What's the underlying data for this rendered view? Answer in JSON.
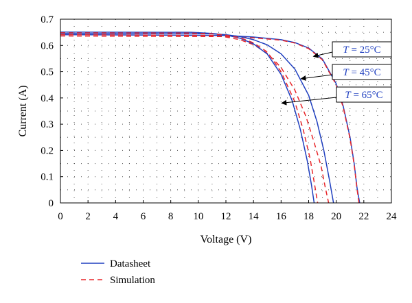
{
  "chart_data": {
    "type": "line",
    "title": "",
    "xlabel": "Voltage (V)",
    "ylabel": "Current (A)",
    "xlim": [
      0,
      24
    ],
    "ylim": [
      0,
      0.7
    ],
    "xticks": [
      0,
      2,
      4,
      6,
      8,
      10,
      12,
      14,
      16,
      18,
      20,
      22,
      24
    ],
    "yticks": [
      0,
      0.1,
      0.2,
      0.3,
      0.4,
      0.5,
      0.6,
      0.7
    ],
    "grid": "dotted",
    "legend_position": "bottom-left",
    "legend": [
      {
        "label": "Datasheet",
        "color": "#1f3fbf",
        "dash": "solid"
      },
      {
        "label": "Simulation",
        "color": "#e8262a",
        "dash": "dashed"
      }
    ],
    "series": [
      {
        "group": "Datasheet",
        "temperature": "25",
        "color": "#1f3fbf",
        "dash": "solid",
        "x": [
          0,
          12,
          14,
          16,
          17,
          18,
          19,
          20,
          20.5,
          21,
          21.3,
          21.5,
          21.7
        ],
        "y": [
          0.641,
          0.638,
          0.632,
          0.622,
          0.611,
          0.59,
          0.548,
          0.454,
          0.37,
          0.25,
          0.15,
          0.06,
          0.0
        ]
      },
      {
        "group": "Simulation",
        "temperature": "25",
        "color": "#e8262a",
        "dash": "dashed",
        "x": [
          0,
          12,
          14,
          16,
          17,
          18,
          19,
          20,
          20.5,
          21,
          21.3,
          21.5,
          21.65
        ],
        "y": [
          0.636,
          0.634,
          0.629,
          0.62,
          0.609,
          0.588,
          0.545,
          0.45,
          0.365,
          0.245,
          0.145,
          0.055,
          0.0
        ]
      },
      {
        "group": "Datasheet",
        "temperature": "45",
        "color": "#1f3fbf",
        "dash": "solid",
        "x": [
          0,
          11,
          12,
          13,
          14,
          15,
          16,
          17,
          18,
          18.6,
          19.1,
          19.5,
          19.8
        ],
        "y": [
          0.646,
          0.644,
          0.641,
          0.634,
          0.622,
          0.602,
          0.568,
          0.51,
          0.41,
          0.31,
          0.2,
          0.09,
          0.0
        ]
      },
      {
        "group": "Simulation",
        "temperature": "45",
        "color": "#e8262a",
        "dash": "dashed",
        "x": [
          0,
          11,
          12,
          13,
          14,
          15,
          16,
          17,
          17.8,
          18.4,
          18.9,
          19.2,
          19.45
        ],
        "y": [
          0.641,
          0.638,
          0.632,
          0.622,
          0.603,
          0.57,
          0.516,
          0.43,
          0.33,
          0.23,
          0.14,
          0.06,
          0.0
        ]
      },
      {
        "group": "Datasheet",
        "temperature": "65",
        "color": "#1f3fbf",
        "dash": "solid",
        "x": [
          0,
          9.5,
          11,
          12,
          13,
          14,
          15,
          16,
          16.8,
          17.4,
          17.9,
          18.2,
          18.4
        ],
        "y": [
          0.651,
          0.65,
          0.646,
          0.64,
          0.628,
          0.606,
          0.567,
          0.49,
          0.39,
          0.28,
          0.16,
          0.07,
          0.0
        ]
      },
      {
        "group": "Simulation",
        "temperature": "65",
        "color": "#e8262a",
        "dash": "dashed",
        "x": [
          0,
          9.5,
          11,
          12,
          13,
          14,
          15,
          16,
          17,
          17.6,
          18.1,
          18.4,
          18.65
        ],
        "y": [
          0.648,
          0.647,
          0.644,
          0.639,
          0.63,
          0.61,
          0.575,
          0.5,
          0.385,
          0.28,
          0.17,
          0.08,
          0.0
        ]
      }
    ],
    "annotations": [
      {
        "label": "T = 25°C",
        "variable": "T",
        "value": " = 25°C",
        "point": [
          18.2,
          0.553
        ]
      },
      {
        "label": "T = 45°C",
        "variable": "T",
        "value": " = 45°C",
        "point": [
          17.3,
          0.468
        ]
      },
      {
        "label": "T = 65°C",
        "variable": "T",
        "value": " = 65°C",
        "point": [
          15.9,
          0.375
        ]
      }
    ]
  }
}
